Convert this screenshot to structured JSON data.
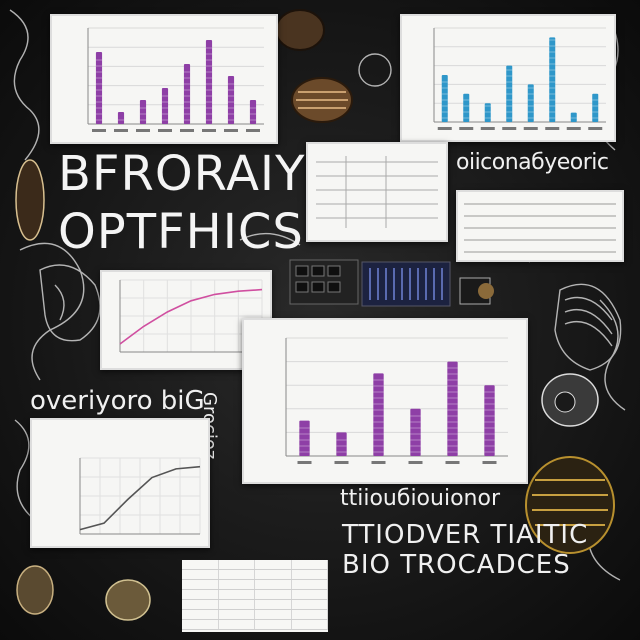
{
  "headline": {
    "line1": "BFRORAIY",
    "line2": "OPTFHICS"
  },
  "scribbles": {
    "top_right": "oiiconaбyeoric",
    "left_mid": "overiyoro biG",
    "vertical": "Grocioz",
    "bottom_upper": "ttiiouбiouionor",
    "bottom_line1": "TTIODVER TIAITIC",
    "bottom_line2": "BIO TROCADCES"
  },
  "colors": {
    "board": "#141414",
    "chalk": "#f0f0f0",
    "purple_bar": "#8e3fa6",
    "blue_bar": "#2f97c9",
    "pink_line": "#d04fa0",
    "gold": "#b8902e"
  },
  "chart_data": [
    {
      "type": "bar",
      "categories": [
        "",
        "",
        "",
        "",
        "",
        "",
        "",
        ""
      ],
      "values": [
        6,
        1,
        2,
        3,
        5,
        7,
        4,
        2
      ],
      "title": "",
      "xlabel": "",
      "ylabel": "",
      "ylim": [
        0,
        8
      ],
      "color": "#8e3fa6"
    },
    {
      "type": "bar",
      "categories": [
        "",
        "",
        "",
        "",
        "",
        "",
        "",
        ""
      ],
      "values": [
        5,
        3,
        2,
        6,
        4,
        9,
        1,
        3
      ],
      "title": "",
      "xlabel": "",
      "ylabel": "",
      "ylim": [
        0,
        10
      ],
      "color": "#2f97c9"
    },
    {
      "type": "bar",
      "categories": [
        "",
        "",
        "",
        "",
        "",
        ""
      ],
      "values": [
        3,
        2,
        7,
        4,
        8,
        6
      ],
      "title": "",
      "xlabel": "",
      "ylabel": "",
      "ylim": [
        0,
        10
      ],
      "color": "#8e3fa6"
    },
    {
      "type": "line",
      "x": [
        0,
        1,
        2,
        3,
        4,
        5,
        6
      ],
      "y": [
        0.5,
        1.6,
        2.5,
        3.2,
        3.6,
        3.8,
        3.9
      ],
      "title": "",
      "xlabel": "",
      "ylabel": "",
      "color": "#d04fa0"
    },
    {
      "type": "line",
      "x": [
        0,
        1,
        2,
        3,
        4,
        5
      ],
      "y": [
        0.2,
        0.5,
        1.6,
        2.6,
        3.0,
        3.1
      ],
      "title": "",
      "xlabel": "",
      "ylabel": "",
      "color": "#555555"
    }
  ]
}
